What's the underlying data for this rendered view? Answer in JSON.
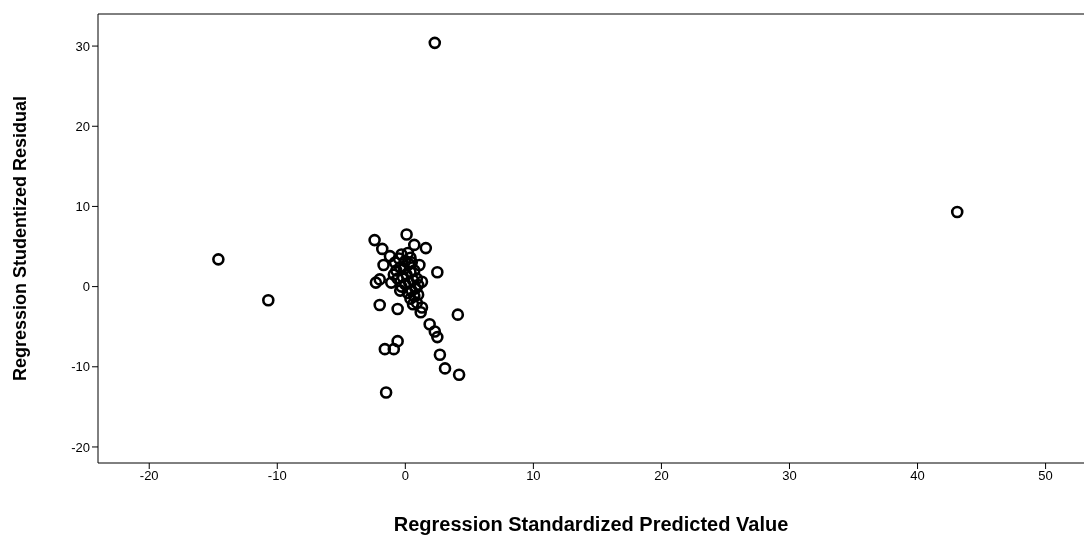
{
  "chart_data": {
    "type": "scatter",
    "xlabel": "Regression Standardized Predicted Value",
    "ylabel": "Regression Studentized Residual",
    "xlim": [
      -24,
      53
    ],
    "ylim": [
      -22,
      34
    ],
    "xticks": [
      -20,
      -10,
      0,
      10,
      20,
      30,
      40,
      50
    ],
    "yticks": [
      -20,
      -10,
      0,
      10,
      20,
      30
    ],
    "grid": false,
    "legend": false,
    "marker": "circle",
    "series": [
      {
        "color": "#000000",
        "x": [
          2.3,
          43.1,
          -14.6,
          -10.7,
          -2.4,
          0.1,
          -1.8,
          0.7,
          1.6,
          -1.7,
          -1.2,
          1.1,
          2.5,
          -2.3,
          -2.0,
          1.3,
          -2.0,
          -0.6,
          4.1,
          1.2,
          1.9,
          2.3,
          2.5,
          -0.6,
          -1.6,
          -0.9,
          2.7,
          3.1,
          4.2,
          -1.5,
          -0.8,
          -0.5,
          -0.3,
          0.0,
          0.2,
          0.4,
          -0.7,
          -0.4,
          -0.1,
          0.3,
          0.5,
          -0.6,
          -0.2,
          0.1,
          0.4,
          0.7,
          -0.3,
          0.0,
          0.3,
          0.6,
          0.9,
          0.2,
          0.5,
          0.8,
          1.0,
          0.4,
          0.7,
          1.0,
          -0.9,
          -1.1,
          0.6,
          -0.4,
          0.9,
          1.3
        ],
        "values": [
          30.4,
          9.3,
          3.4,
          -1.7,
          5.8,
          6.5,
          4.7,
          5.2,
          4.8,
          2.7,
          3.8,
          2.7,
          1.8,
          0.5,
          0.9,
          0.6,
          -2.3,
          -2.8,
          -3.5,
          -3.2,
          -4.7,
          -5.6,
          -6.3,
          -6.8,
          -7.8,
          -7.8,
          -8.5,
          -10.2,
          -11.0,
          -13.2,
          3.0,
          3.5,
          4.0,
          3.2,
          4.2,
          3.6,
          2.0,
          2.4,
          2.2,
          2.8,
          3.0,
          1.0,
          1.2,
          1.5,
          1.8,
          2.0,
          0.0,
          0.3,
          0.5,
          0.8,
          1.0,
          -0.8,
          -0.5,
          -0.2,
          0.2,
          -1.5,
          -1.2,
          -1.0,
          1.5,
          0.5,
          -2.2,
          -0.5,
          -2.0,
          -2.6
        ]
      }
    ]
  }
}
